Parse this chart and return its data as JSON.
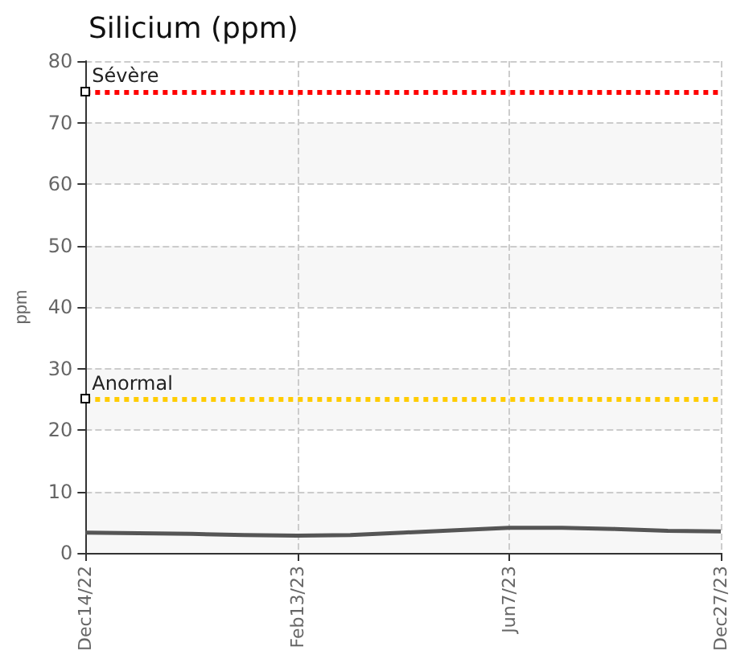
{
  "chart_data": {
    "type": "line",
    "title": "Silicium (ppm)",
    "ylabel": "ppm",
    "categories": [
      "Dec14/22",
      null,
      null,
      null,
      "Feb13/23",
      null,
      null,
      null,
      "Jun7/23",
      null,
      null,
      null,
      "Dec27/23"
    ],
    "series": [
      {
        "color": "#555555",
        "values": [
          3.3,
          3.2,
          3.1,
          2.9,
          2.8,
          2.9,
          3.3,
          3.7,
          4.1,
          4.1,
          3.9,
          3.6,
          3.5
        ]
      }
    ],
    "ylim": [
      0,
      80
    ],
    "yticks": [
      0,
      10,
      20,
      30,
      40,
      50,
      60,
      70,
      80
    ],
    "ref_lines": [
      {
        "axis": "y",
        "value": 75,
        "label": "Sévère",
        "color": "#ff0000",
        "line_style": "dotted"
      },
      {
        "axis": "y",
        "value": 25,
        "label": "Anormal",
        "color": "#ffcc00",
        "line_style": "dotted"
      }
    ],
    "grid": true,
    "marker": "none",
    "line_style": "solid"
  }
}
